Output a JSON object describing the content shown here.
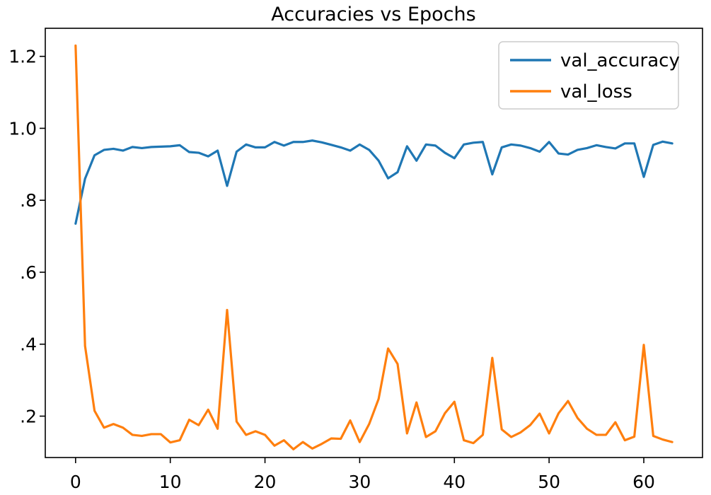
{
  "chart_data": {
    "type": "line",
    "title": "Accuracies vs Epochs",
    "xlabel": "",
    "ylabel": "",
    "x": [
      0,
      1,
      2,
      3,
      4,
      5,
      6,
      7,
      8,
      9,
      10,
      11,
      12,
      13,
      14,
      15,
      16,
      17,
      18,
      19,
      20,
      21,
      22,
      23,
      24,
      25,
      26,
      27,
      28,
      29,
      30,
      31,
      32,
      33,
      34,
      35,
      36,
      37,
      38,
      39,
      40,
      41,
      42,
      43,
      44,
      45,
      46,
      47,
      48,
      49,
      50,
      51,
      52,
      53,
      54,
      55,
      56,
      57,
      58,
      59,
      60,
      61,
      62,
      63
    ],
    "xlim": [
      -3.2,
      66.2
    ],
    "ylim": [
      0.085,
      1.278
    ],
    "x_ticks": [
      0,
      10,
      20,
      30,
      40,
      50,
      60
    ],
    "x_tick_labels": [
      "0",
      "10",
      "20",
      "30",
      "40",
      "50",
      "60"
    ],
    "y_ticks": [
      0.2,
      0.4,
      0.6,
      0.8,
      1.0,
      1.2
    ],
    "y_tick_labels": [
      ".2",
      ".4",
      ".6",
      ".8",
      "1.0",
      "1.2"
    ],
    "grid": false,
    "legend_position": "top-right",
    "series": [
      {
        "name": "val_accuracy",
        "color": "#1f77b4",
        "values": [
          0.735,
          0.86,
          0.925,
          0.94,
          0.943,
          0.938,
          0.948,
          0.945,
          0.948,
          0.949,
          0.95,
          0.953,
          0.934,
          0.932,
          0.922,
          0.938,
          0.84,
          0.935,
          0.955,
          0.947,
          0.947,
          0.962,
          0.952,
          0.962,
          0.962,
          0.966,
          0.961,
          0.954,
          0.947,
          0.938,
          0.955,
          0.94,
          0.91,
          0.861,
          0.878,
          0.95,
          0.91,
          0.955,
          0.952,
          0.932,
          0.917,
          0.955,
          0.96,
          0.962,
          0.872,
          0.947,
          0.955,
          0.952,
          0.945,
          0.935,
          0.962,
          0.93,
          0.927,
          0.94,
          0.945,
          0.953,
          0.948,
          0.944,
          0.958,
          0.958,
          0.865,
          0.954,
          0.963,
          0.958
        ]
      },
      {
        "name": "val_loss",
        "color": "#ff7f0e",
        "values": [
          1.23,
          0.395,
          0.215,
          0.168,
          0.178,
          0.168,
          0.148,
          0.145,
          0.15,
          0.15,
          0.127,
          0.133,
          0.19,
          0.175,
          0.218,
          0.165,
          0.495,
          0.185,
          0.148,
          0.158,
          0.148,
          0.118,
          0.133,
          0.108,
          0.128,
          0.11,
          0.123,
          0.138,
          0.137,
          0.188,
          0.128,
          0.178,
          0.248,
          0.388,
          0.345,
          0.152,
          0.238,
          0.142,
          0.158,
          0.208,
          0.24,
          0.133,
          0.125,
          0.148,
          0.362,
          0.163,
          0.142,
          0.155,
          0.175,
          0.207,
          0.152,
          0.208,
          0.242,
          0.195,
          0.165,
          0.148,
          0.148,
          0.183,
          0.133,
          0.143,
          0.398,
          0.145,
          0.135,
          0.128
        ]
      }
    ]
  }
}
